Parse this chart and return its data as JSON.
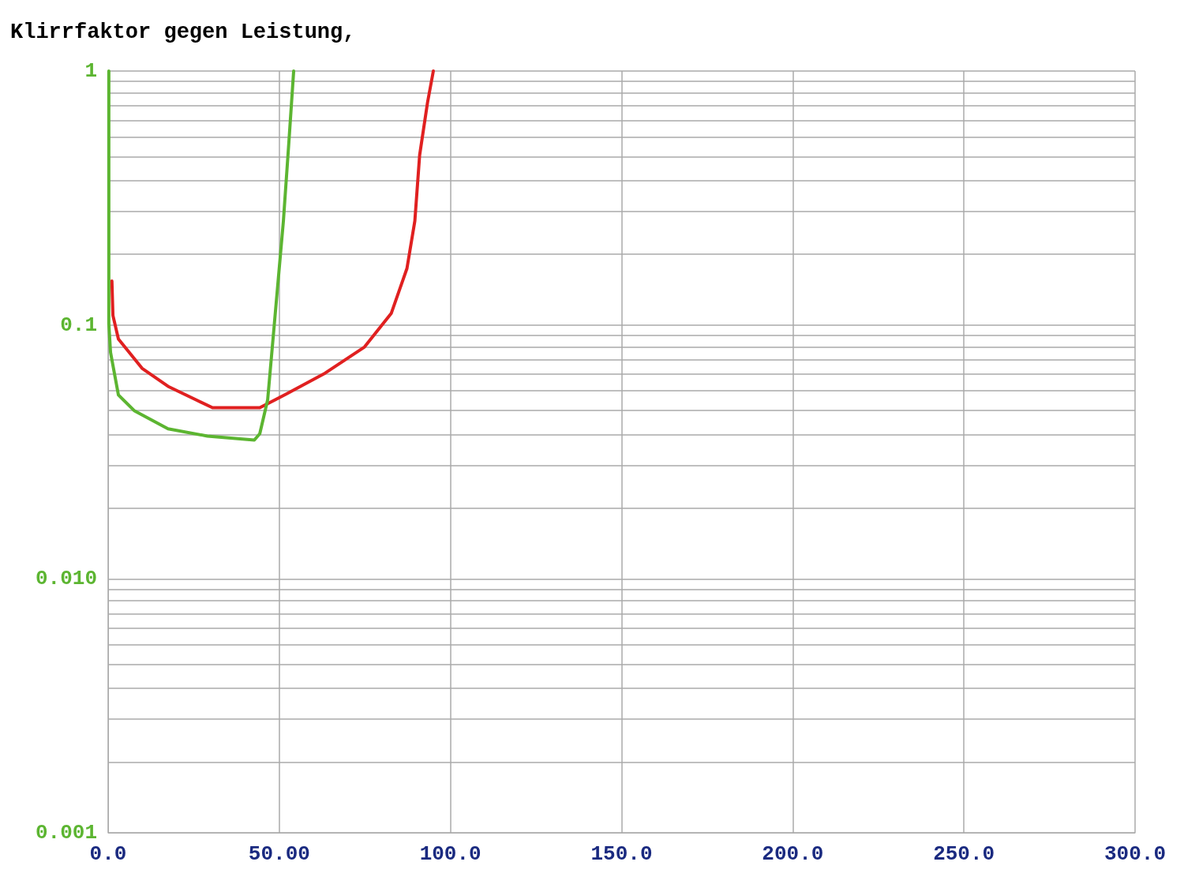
{
  "chart_data": {
    "type": "line",
    "title": "Klirrfaktor gegen Leistung,",
    "series": [
      {
        "color": "#e02020",
        "x": [
          1.1,
          1.4,
          3.0,
          9.9,
          17.5,
          30.5,
          44.3,
          51.9,
          63.4,
          74.9,
          82.7,
          87.3,
          89.6,
          91.0,
          93.3,
          95.0
        ],
        "values": [
          0.149,
          0.109,
          0.088,
          0.0675,
          0.0573,
          0.0472,
          0.0472,
          0.0533,
          0.0646,
          0.0819,
          0.111,
          0.167,
          0.257,
          0.466,
          0.751,
          1
        ]
      },
      {
        "color": "#5cb531",
        "x": [
          0.2,
          0.2,
          0.7,
          3.0,
          7.6,
          17.5,
          29,
          42.7,
          44.3,
          46.6,
          48.5,
          51.2,
          52.8,
          54.2
        ],
        "values": [
          1,
          0.101,
          0.078,
          0.053,
          0.046,
          0.039,
          0.0365,
          0.0352,
          0.0373,
          0.0507,
          0.099,
          0.257,
          0.525,
          1
        ]
      }
    ],
    "xlim": [
      0,
      300
    ],
    "xticks": [
      {
        "value": 0,
        "label": "0.0"
      },
      {
        "value": 50,
        "label": "50.00"
      },
      {
        "value": 100,
        "label": "100.0"
      },
      {
        "value": 150,
        "label": "150.0"
      },
      {
        "value": 200,
        "label": "200.0"
      },
      {
        "value": 250,
        "label": "250.0"
      },
      {
        "value": 300,
        "label": "300.0"
      }
    ],
    "ylim": [
      0.001,
      1
    ],
    "yticks": [
      {
        "value": 0.001,
        "label": "0.001"
      },
      {
        "value": 0.01,
        "label": "0.010"
      },
      0.1,
      1
    ],
    "log": "y",
    "grid": true,
    "marker": "none",
    "line_style": "solid"
  }
}
